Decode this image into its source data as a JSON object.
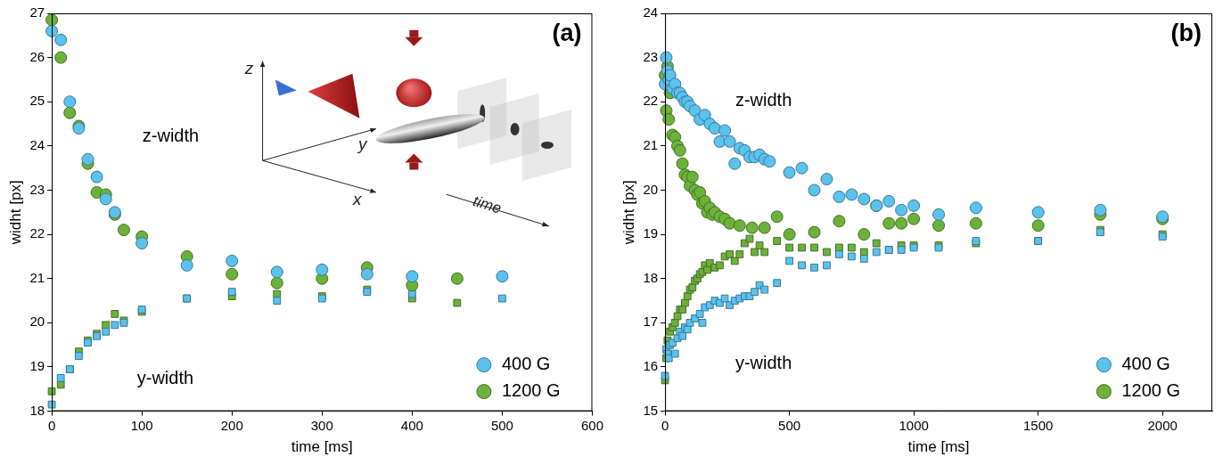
{
  "chart_data": [
    {
      "type": "scatter",
      "panel_label": "(a)",
      "x_label": "time [ms]",
      "y_label": "widht [px]",
      "xlim": [
        0,
        600
      ],
      "xticks": [
        0,
        100,
        200,
        300,
        400,
        500,
        600
      ],
      "ylim": [
        18,
        27
      ],
      "yticks": [
        18,
        19,
        20,
        21,
        22,
        23,
        24,
        25,
        26,
        27
      ],
      "grid": false,
      "legend": "lower right",
      "annotations": [
        "z-width",
        "y-width"
      ],
      "inset_labels": [
        "z",
        "y",
        "x",
        "time"
      ],
      "series": [
        {
          "name": "400 G",
          "color": "#5bc2ee",
          "marker": "circle",
          "x": [
            0,
            10,
            20,
            30,
            40,
            50,
            60,
            70,
            100,
            150,
            200,
            250,
            300,
            350,
            400,
            500
          ],
          "values": [
            26.6,
            26.4,
            25.0,
            24.4,
            23.7,
            23.3,
            22.8,
            22.5,
            21.8,
            21.3,
            21.4,
            21.15,
            21.2,
            21.1,
            21.05,
            21.05
          ]
        },
        {
          "name": "1200 G",
          "color": "#6cb23a",
          "marker": "circle",
          "x": [
            0,
            10,
            20,
            30,
            40,
            50,
            60,
            70,
            80,
            100,
            150,
            200,
            250,
            300,
            350,
            400,
            450
          ],
          "values": [
            26.85,
            26.0,
            24.75,
            24.45,
            23.6,
            22.95,
            22.9,
            22.45,
            22.1,
            21.95,
            21.5,
            21.1,
            20.9,
            21.0,
            21.25,
            20.85,
            21.0
          ]
        },
        {
          "name": "400 G",
          "color": "#5bc2ee",
          "marker": "square",
          "x": [
            0,
            10,
            20,
            30,
            40,
            50,
            60,
            70,
            80,
            100,
            150,
            200,
            250,
            300,
            350,
            400,
            500
          ],
          "values": [
            18.15,
            18.75,
            18.95,
            19.25,
            19.55,
            19.7,
            19.8,
            19.95,
            20.0,
            20.3,
            20.55,
            20.7,
            20.5,
            20.55,
            20.7,
            20.65,
            20.55
          ]
        },
        {
          "name": "1200 G",
          "color": "#6cb23a",
          "marker": "square",
          "x": [
            0,
            10,
            20,
            30,
            40,
            50,
            60,
            70,
            80,
            100,
            150,
            200,
            250,
            300,
            350,
            400,
            450
          ],
          "values": [
            18.45,
            18.6,
            18.95,
            19.35,
            19.6,
            19.75,
            19.95,
            20.2,
            20.05,
            20.25,
            20.55,
            20.6,
            20.65,
            20.6,
            20.75,
            20.55,
            20.45
          ]
        }
      ]
    },
    {
      "type": "scatter",
      "panel_label": "(b)",
      "x_label": "time [ms]",
      "y_label": "widht [px]",
      "xlim": [
        0,
        2200
      ],
      "xticks": [
        0,
        500,
        1000,
        1500,
        2000
      ],
      "ylim": [
        15,
        24
      ],
      "yticks": [
        15,
        16,
        17,
        18,
        19,
        20,
        21,
        22,
        23,
        24
      ],
      "grid": false,
      "legend": "lower right",
      "annotations": [
        "z-width",
        "y-width"
      ],
      "series": [
        {
          "name": "400 G",
          "color": "#5bc2ee",
          "marker": "circle",
          "x": [
            0,
            5,
            10,
            15,
            20,
            30,
            40,
            50,
            60,
            70,
            80,
            90,
            100,
            120,
            140,
            160,
            180,
            200,
            220,
            240,
            260,
            280,
            300,
            320,
            340,
            360,
            380,
            400,
            420,
            500,
            550,
            600,
            650,
            700,
            750,
            800,
            850,
            900,
            950,
            1000,
            1100,
            1250,
            1500,
            1750,
            2000
          ],
          "values": [
            22.4,
            23.0,
            22.7,
            22.5,
            22.6,
            22.3,
            22.4,
            22.2,
            22.2,
            22.1,
            22.0,
            22.0,
            21.9,
            21.8,
            21.6,
            21.7,
            21.5,
            21.4,
            21.1,
            21.35,
            21.1,
            20.6,
            20.95,
            20.9,
            20.75,
            20.75,
            20.8,
            20.7,
            20.65,
            20.4,
            20.5,
            20.0,
            20.25,
            19.85,
            19.9,
            19.8,
            19.65,
            19.75,
            19.55,
            19.65,
            19.45,
            19.6,
            19.5,
            19.55,
            19.4
          ]
        },
        {
          "name": "1200 G",
          "color": "#6cb23a",
          "marker": "circle",
          "x": [
            0,
            5,
            10,
            15,
            20,
            30,
            40,
            50,
            60,
            70,
            80,
            90,
            100,
            110,
            120,
            130,
            140,
            150,
            160,
            170,
            180,
            190,
            200,
            220,
            240,
            260,
            300,
            350,
            400,
            450,
            500,
            600,
            700,
            800,
            850,
            900,
            950,
            1000,
            1100,
            1250,
            1500,
            1750,
            2000
          ],
          "values": [
            22.6,
            21.8,
            22.8,
            21.6,
            22.2,
            21.25,
            21.2,
            21.0,
            20.9,
            20.6,
            20.35,
            20.3,
            20.1,
            20.3,
            20.0,
            19.9,
            19.95,
            19.7,
            19.75,
            19.5,
            19.6,
            19.45,
            19.5,
            19.4,
            19.35,
            19.25,
            19.2,
            19.15,
            19.15,
            19.4,
            19.0,
            19.05,
            19.3,
            19.0,
            19.65,
            19.25,
            19.25,
            19.35,
            19.2,
            19.25,
            19.2,
            19.45,
            19.35
          ]
        },
        {
          "name": "400 G",
          "color": "#5bc2ee",
          "marker": "square",
          "x": [
            0,
            5,
            10,
            15,
            20,
            30,
            40,
            50,
            60,
            70,
            80,
            90,
            100,
            120,
            140,
            150,
            160,
            180,
            200,
            220,
            240,
            260,
            280,
            300,
            320,
            340,
            360,
            380,
            400,
            450,
            500,
            550,
            600,
            650,
            700,
            750,
            800,
            850,
            900,
            950,
            1000,
            1100,
            1250,
            1500,
            1750,
            2000
          ],
          "values": [
            15.8,
            16.4,
            16.3,
            16.2,
            16.5,
            16.55,
            16.3,
            16.65,
            16.8,
            16.7,
            16.9,
            16.85,
            17.0,
            17.1,
            17.2,
            17.0,
            17.35,
            17.4,
            17.5,
            17.45,
            17.55,
            17.4,
            17.5,
            17.55,
            17.6,
            17.6,
            17.7,
            17.85,
            17.75,
            17.9,
            18.4,
            18.3,
            18.25,
            18.3,
            18.55,
            18.5,
            18.45,
            18.6,
            18.65,
            18.65,
            18.7,
            18.7,
            18.85,
            18.85,
            19.05,
            18.95
          ]
        },
        {
          "name": "1200 G",
          "color": "#6cb23a",
          "marker": "square",
          "x": [
            0,
            5,
            10,
            15,
            20,
            30,
            40,
            50,
            60,
            70,
            80,
            90,
            100,
            110,
            120,
            130,
            140,
            150,
            160,
            170,
            180,
            200,
            220,
            240,
            260,
            280,
            300,
            320,
            340,
            360,
            380,
            400,
            450,
            500,
            550,
            600,
            650,
            700,
            750,
            800,
            850,
            900,
            950,
            1000,
            1100,
            1250,
            1500,
            1750,
            2000
          ],
          "values": [
            15.7,
            16.2,
            16.6,
            16.5,
            16.8,
            16.9,
            17.0,
            17.15,
            17.3,
            17.3,
            17.45,
            17.6,
            17.75,
            17.8,
            17.95,
            18.0,
            18.1,
            18.15,
            18.3,
            18.2,
            18.35,
            18.25,
            18.3,
            18.5,
            18.55,
            18.4,
            18.55,
            18.8,
            18.9,
            18.6,
            18.75,
            18.6,
            18.85,
            18.7,
            18.7,
            18.7,
            18.6,
            18.7,
            18.7,
            18.6,
            18.8,
            18.65,
            18.75,
            18.75,
            18.75,
            18.8,
            18.85,
            19.1,
            19.0
          ]
        }
      ]
    }
  ]
}
